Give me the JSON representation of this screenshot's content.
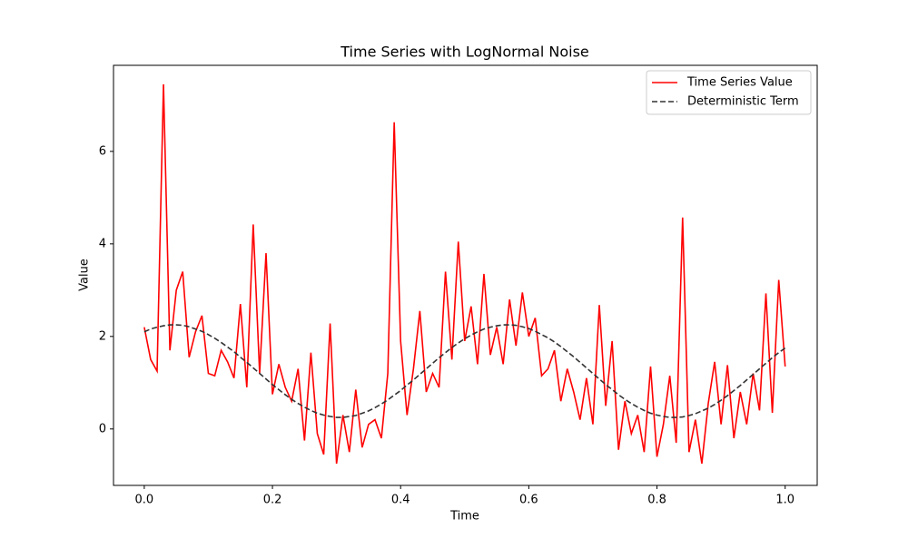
{
  "chart_data": {
    "type": "line",
    "title": "Time Series with LogNormal Noise",
    "xlabel": "Time",
    "ylabel": "Value",
    "x": [
      0,
      0.01,
      0.02,
      0.03,
      0.04,
      0.05,
      0.06,
      0.07,
      0.08,
      0.09,
      0.1,
      0.11,
      0.12,
      0.13,
      0.14,
      0.15,
      0.16,
      0.17,
      0.18,
      0.19,
      0.2,
      0.21,
      0.22,
      0.23,
      0.24,
      0.25,
      0.26,
      0.27,
      0.28,
      0.29,
      0.3,
      0.31,
      0.32,
      0.33,
      0.34,
      0.35,
      0.36,
      0.37,
      0.38,
      0.39,
      0.4,
      0.41,
      0.42,
      0.43,
      0.44,
      0.45,
      0.46,
      0.47,
      0.48,
      0.49,
      0.5,
      0.51,
      0.52,
      0.53,
      0.54,
      0.55,
      0.56,
      0.57,
      0.58,
      0.59,
      0.6,
      0.61,
      0.62,
      0.63,
      0.64,
      0.65,
      0.66,
      0.67,
      0.68,
      0.69,
      0.7,
      0.71,
      0.72,
      0.73,
      0.74,
      0.75,
      0.76,
      0.77,
      0.78,
      0.79,
      0.8,
      0.81,
      0.82,
      0.83,
      0.84,
      0.85,
      0.86,
      0.87,
      0.88,
      0.89,
      0.9,
      0.91,
      0.92,
      0.93,
      0.94,
      0.95,
      0.96,
      0.97,
      0.98,
      0.99,
      1
    ],
    "series": [
      {
        "name": "Time Series Value",
        "color": "#ff0000",
        "linestyle": "solid",
        "values": [
          2.2,
          1.5,
          1.25,
          7.45,
          1.7,
          3.0,
          3.4,
          1.55,
          2.1,
          2.45,
          1.2,
          1.15,
          1.7,
          1.45,
          1.1,
          2.7,
          0.9,
          4.42,
          1.2,
          3.8,
          0.75,
          1.4,
          0.9,
          0.6,
          1.3,
          -0.25,
          1.65,
          -0.1,
          -0.55,
          2.28,
          -0.75,
          0.3,
          -0.5,
          0.85,
          -0.4,
          0.1,
          0.2,
          -0.2,
          1.2,
          6.63,
          1.9,
          0.3,
          1.3,
          2.55,
          0.8,
          1.2,
          0.9,
          3.4,
          1.5,
          4.05,
          1.9,
          2.65,
          1.4,
          3.35,
          1.6,
          2.2,
          1.4,
          2.8,
          1.8,
          2.95,
          2.0,
          2.4,
          1.15,
          1.3,
          1.7,
          0.6,
          1.3,
          0.8,
          0.2,
          1.1,
          0.1,
          2.68,
          0.5,
          1.9,
          -0.45,
          0.6,
          -0.1,
          0.3,
          -0.5,
          1.35,
          -0.6,
          0.1,
          1.15,
          -0.3,
          4.57,
          -0.5,
          0.2,
          -0.75,
          0.55,
          1.45,
          0.1,
          1.38,
          -0.2,
          0.8,
          0.1,
          1.2,
          0.4,
          2.93,
          0.35,
          3.22,
          1.35
        ]
      },
      {
        "name": "Deterministic Term",
        "color": "#333333",
        "linestyle": "dashed",
        "values": [
          2.1,
          2.16,
          2.2,
          2.23,
          2.25,
          2.25,
          2.24,
          2.21,
          2.16,
          2.11,
          2.04,
          1.96,
          1.87,
          1.77,
          1.67,
          1.55,
          1.44,
          1.32,
          1.2,
          1.08,
          0.96,
          0.85,
          0.74,
          0.64,
          0.55,
          0.47,
          0.4,
          0.34,
          0.3,
          0.27,
          0.25,
          0.25,
          0.27,
          0.29,
          0.34,
          0.39,
          0.46,
          0.54,
          0.63,
          0.73,
          0.83,
          0.95,
          1.06,
          1.18,
          1.3,
          1.42,
          1.54,
          1.65,
          1.76,
          1.86,
          1.95,
          2.03,
          2.1,
          2.16,
          2.2,
          2.23,
          2.25,
          2.25,
          2.24,
          2.21,
          2.17,
          2.11,
          2.04,
          1.97,
          1.88,
          1.78,
          1.67,
          1.56,
          1.44,
          1.32,
          1.2,
          1.08,
          0.96,
          0.85,
          0.74,
          0.64,
          0.55,
          0.47,
          0.4,
          0.34,
          0.3,
          0.27,
          0.25,
          0.25,
          0.26,
          0.29,
          0.33,
          0.39,
          0.45,
          0.53,
          0.62,
          0.72,
          0.83,
          0.94,
          1.06,
          1.18,
          1.3,
          1.42,
          1.54,
          1.65,
          1.75
        ]
      }
    ],
    "xlim": [
      -0.048,
      1.05
    ],
    "ylim": [
      -1.22,
      7.86
    ],
    "xticks": [
      {
        "value": 0,
        "label": "0.0"
      },
      {
        "value": 0.2,
        "label": "0.2"
      },
      {
        "value": 0.4,
        "label": "0.4"
      },
      {
        "value": 0.6,
        "label": "0.6"
      },
      {
        "value": 0.8,
        "label": "0.8"
      },
      {
        "value": 1,
        "label": "1.0"
      }
    ],
    "yticks": [
      0,
      2,
      4,
      6
    ],
    "grid": false,
    "legend": "upper-right"
  }
}
